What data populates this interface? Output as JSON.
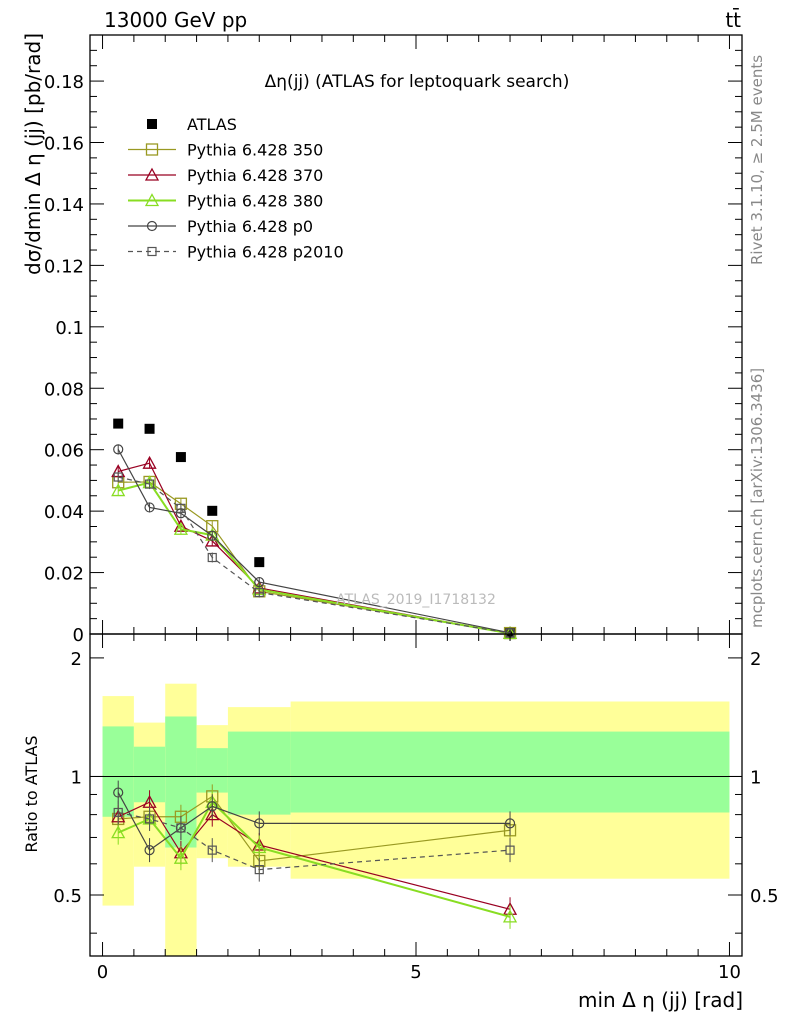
{
  "header": {
    "energy_label": "13000 GeV pp",
    "process_label": "tt̄"
  },
  "side": {
    "rivet_label": "Rivet 3.1.10, ≥ 2.5M events",
    "mcplots_label": "mcplots.cern.ch [arXiv:1306.3436]"
  },
  "colors": {
    "data": "#000000",
    "p350": "#999922",
    "p370": "#990022",
    "p380": "#88dd22",
    "p0": "#444444",
    "p2010": "#555555",
    "band_outer": "#ffff99",
    "band_inner": "#99ff99"
  },
  "chart_data": [
    {
      "type": "scatter",
      "title": "Δη(jj) (ATLAS for leptoquark search)",
      "ylabel": "dσ/dmin Δ η (jj) [pb/rad]",
      "watermark": "ATLAS_2019_I1718132",
      "xlim": [
        -0.2,
        10.2
      ],
      "ylim": [
        0,
        0.195
      ],
      "yticks": [
        "0",
        "0.02",
        "0.04",
        "0.06",
        "0.08",
        "0.1",
        "0.12",
        "0.14",
        "0.16",
        "0.18"
      ],
      "x": [
        0.25,
        0.75,
        1.25,
        1.75,
        2.5,
        6.5
      ],
      "series": [
        {
          "name": "ATLAS",
          "key": "data",
          "marker": "filled-square",
          "values": [
            0.0685,
            0.0668,
            0.0576,
            0.0401,
            0.0234,
            0.0005
          ]
        },
        {
          "name": "Pythia 6.428 350",
          "key": "p350",
          "marker": "open-square",
          "values": [
            0.0494,
            0.0495,
            0.0424,
            0.0351,
            0.0139,
            0.0003
          ]
        },
        {
          "name": "Pythia 6.428 370",
          "key": "p370",
          "marker": "open-triangle",
          "values": [
            0.0529,
            0.0556,
            0.0351,
            0.0303,
            0.015,
            0.0002
          ]
        },
        {
          "name": "Pythia 6.428 380",
          "key": "p380",
          "marker": "open-triangle",
          "values": [
            0.0467,
            0.0493,
            0.0341,
            0.0322,
            0.0145,
            0.0002
          ]
        },
        {
          "name": "Pythia 6.428 p0",
          "key": "p0",
          "marker": "open-circle",
          "values": [
            0.0601,
            0.0412,
            0.0393,
            0.032,
            0.0169,
            0.0004
          ]
        },
        {
          "name": "Pythia 6.428 p2010",
          "key": "p2010",
          "marker": "small-square-dashed",
          "values": [
            0.0511,
            0.0488,
            0.0409,
            0.0249,
            0.0135,
            0.0003
          ]
        }
      ]
    },
    {
      "type": "scatter",
      "ylabel": "Ratio to ATLAS",
      "xlabel": "min Δ η (jj) [rad]",
      "xlim": [
        -0.2,
        10.2
      ],
      "ylim": [
        0.35,
        2.3
      ],
      "xticks": [
        "0",
        "5",
        "10"
      ],
      "yticks": [
        "0.5",
        "1",
        "2"
      ],
      "x": [
        0.25,
        0.75,
        1.25,
        1.75,
        2.5,
        6.5
      ],
      "bands": {
        "bin_edges": [
          0,
          0.5,
          1.0,
          1.5,
          2.0,
          3.0,
          10.0
        ],
        "outer_low": [
          0.47,
          0.59,
          0.35,
          0.62,
          0.59,
          0.55
        ],
        "outer_high": [
          1.6,
          1.37,
          1.72,
          1.35,
          1.5,
          1.55
        ],
        "inner_low": [
          0.79,
          0.86,
          0.66,
          0.91,
          0.8,
          0.81
        ],
        "inner_high": [
          1.34,
          1.19,
          1.42,
          1.18,
          1.3,
          1.3
        ]
      },
      "series": [
        {
          "name": "Pythia 6.428 350",
          "key": "p350",
          "values": [
            0.78,
            0.79,
            0.79,
            0.89,
            0.61,
            0.73
          ]
        },
        {
          "name": "Pythia 6.428 370",
          "key": "p370",
          "values": [
            0.79,
            0.86,
            0.64,
            0.8,
            0.67,
            0.46
          ]
        },
        {
          "name": "Pythia 6.428 380",
          "key": "p380",
          "values": [
            0.72,
            0.78,
            0.62,
            0.86,
            0.66,
            0.44
          ]
        },
        {
          "name": "Pythia 6.428 p0",
          "key": "p0",
          "values": [
            0.91,
            0.65,
            0.74,
            0.84,
            0.76,
            0.76
          ]
        },
        {
          "name": "Pythia 6.428 p2010",
          "key": "p2010",
          "values": [
            0.81,
            0.78,
            0.74,
            0.65,
            0.58,
            0.65
          ]
        }
      ]
    }
  ]
}
